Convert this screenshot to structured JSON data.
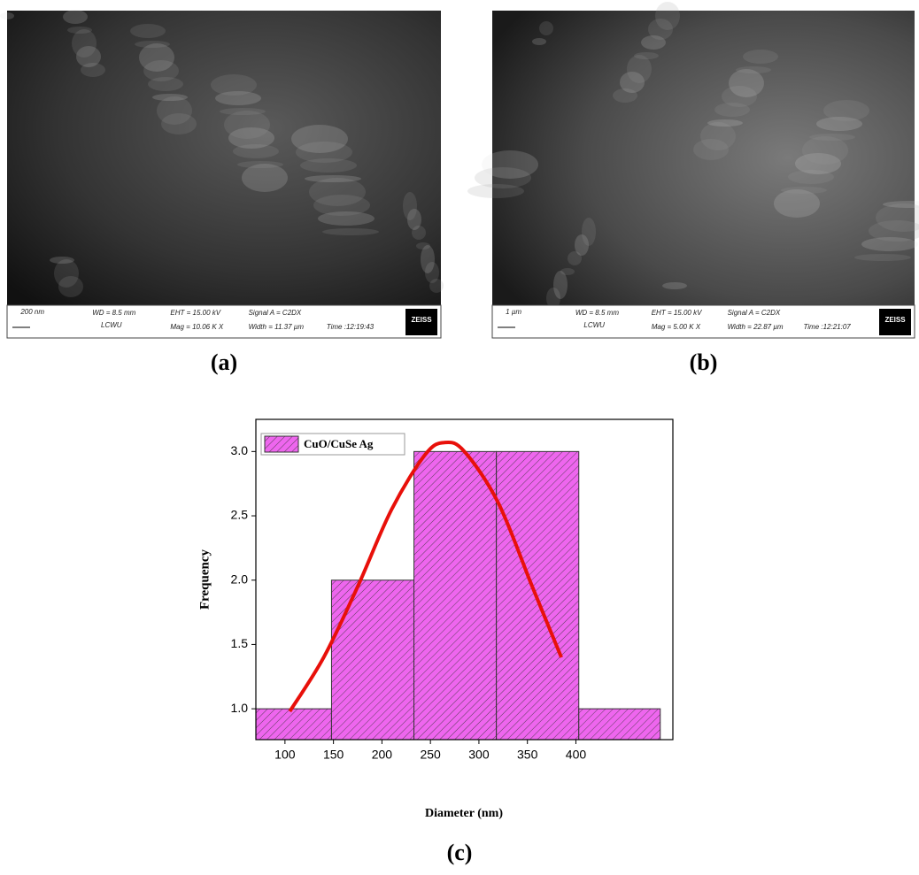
{
  "panels": [
    {
      "label": "(a)",
      "info": [
        "200 nm",
        "WD = 8.5 mm",
        "LCWU",
        "EHT = 15.00 kV",
        "Mag = 10.06 K X",
        "Signal A = C2DX",
        "Width = 11.37 µm",
        "Time :12:19:43",
        "ZEISS"
      ]
    },
    {
      "label": "(b)",
      "info": [
        "1 µm",
        "WD = 8.5 mm",
        "LCWU",
        "EHT = 15.00 kV",
        "Mag = 5.00 K X",
        "Signal A = C2DX",
        "Width = 22.87 µm",
        "Time :12:21:07",
        "ZEISS"
      ]
    }
  ],
  "chart_data": {
    "type": "histogram",
    "label": "(c)",
    "x_label": "Diameter (nm)",
    "y_label": "Frequency",
    "bins": [
      70,
      148,
      233,
      318,
      403,
      487
    ],
    "series": [
      {
        "name": "CuO/CuSe Ag",
        "color": "#ee66ee",
        "values": [
          1,
          2,
          3,
          3,
          1
        ]
      }
    ],
    "fit": {
      "color": "#e8100a",
      "x": [
        105,
        140,
        175,
        210,
        245,
        265,
        285,
        320,
        355,
        385
      ],
      "y": [
        0.98,
        1.4,
        1.95,
        2.55,
        2.98,
        3.07,
        3.0,
        2.6,
        1.95,
        1.4
      ]
    },
    "xlim": [
      70,
      500
    ],
    "ylim": [
      0.76,
      3.25
    ],
    "xticks": [
      100,
      150,
      200,
      250,
      300,
      350,
      400
    ],
    "yticks": [
      {
        "value": 1,
        "label": "1.0"
      },
      {
        "value": 1.5,
        "label": "1.5"
      },
      {
        "value": 2,
        "label": "2.0"
      },
      {
        "value": 2.5,
        "label": "2.5"
      },
      {
        "value": 3,
        "label": "3.0"
      }
    ],
    "legend": "top-left"
  }
}
